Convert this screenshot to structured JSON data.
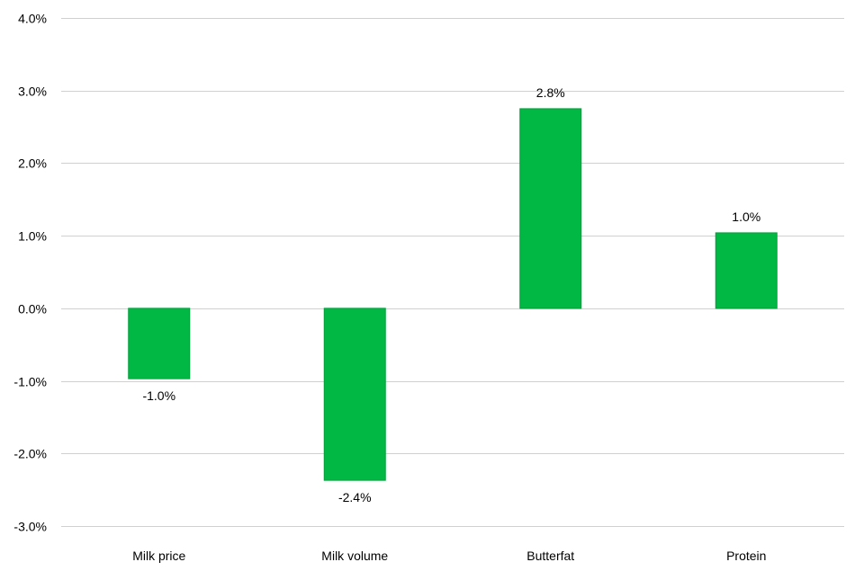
{
  "chart_data": {
    "type": "bar",
    "title": "",
    "xlabel": "",
    "ylabel": "",
    "categories": [
      "Milk price",
      "Milk volume",
      "Butterfat",
      "Protein"
    ],
    "values": [
      -0.0097,
      -0.0237,
      0.0275,
      0.0104
    ],
    "data_labels": [
      "-1.0%",
      "-2.4%",
      "2.8%",
      "1.0%"
    ],
    "ylim": [
      -0.03,
      0.04
    ],
    "y_ticks": [
      {
        "value": 0.04,
        "label": "4.0%"
      },
      {
        "value": 0.03,
        "label": "3.0%"
      },
      {
        "value": 0.02,
        "label": "2.0%"
      },
      {
        "value": 0.01,
        "label": "1.0%"
      },
      {
        "value": 0.0,
        "label": "0.0%"
      },
      {
        "value": -0.01,
        "label": "-1.0%"
      },
      {
        "value": -0.02,
        "label": "-2.0%"
      },
      {
        "value": -0.03,
        "label": "-3.0%"
      }
    ],
    "grid": true,
    "legend": "none",
    "colors": {
      "bar_fill": "#00b843",
      "bar_stroke": "#00a03a",
      "gridline": "#d0d0d0",
      "text": "#000000"
    }
  }
}
